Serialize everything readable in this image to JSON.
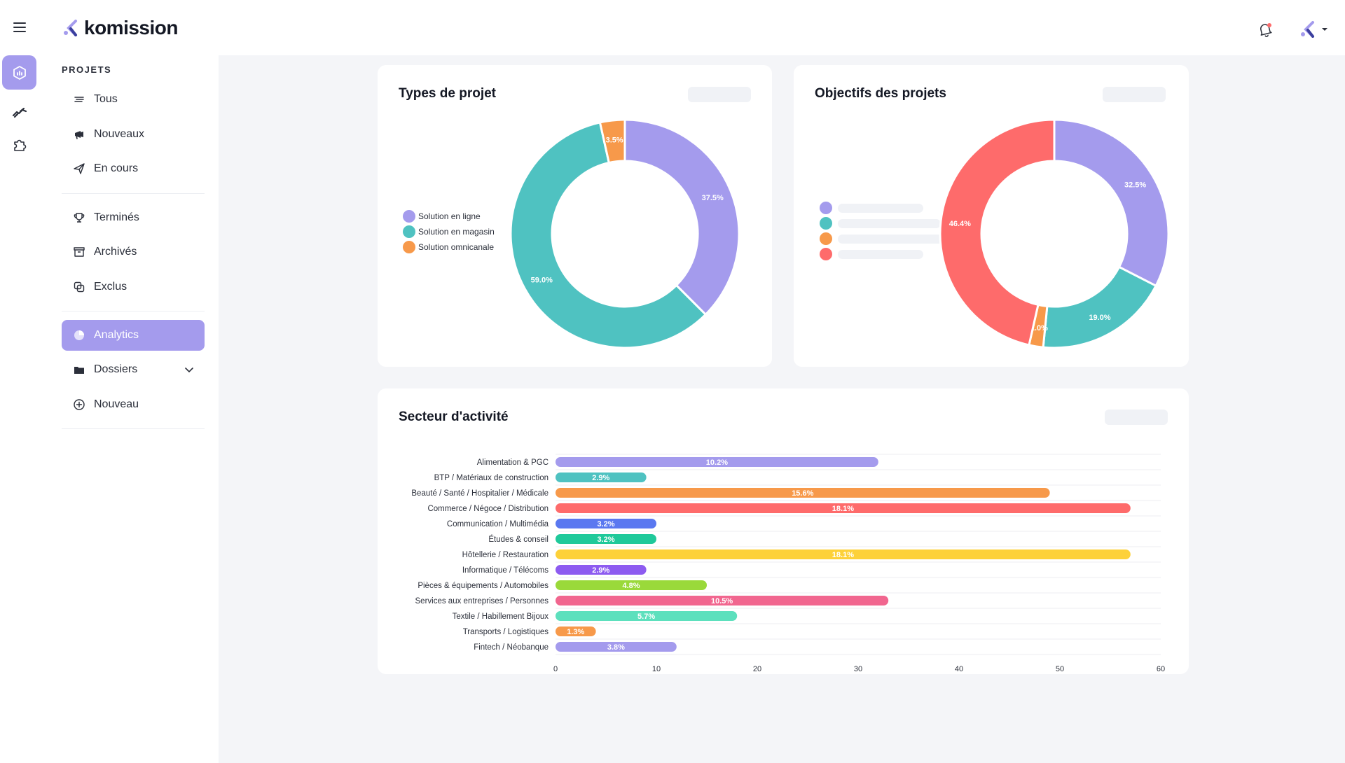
{
  "app": {
    "name": "komission"
  },
  "sidebar": {
    "section_title": "PROJETS",
    "items": [
      {
        "label": "Tous",
        "icon": "list-icon"
      },
      {
        "label": "Nouveaux",
        "icon": "megaphone-icon"
      },
      {
        "label": "En cours",
        "icon": "send-icon"
      },
      {
        "label": "Terminés",
        "icon": "trophy-icon"
      },
      {
        "label": "Archivés",
        "icon": "archive-icon"
      },
      {
        "label": "Exclus",
        "icon": "exclude-icon"
      },
      {
        "label": "Analytics",
        "icon": "pie-chart-icon",
        "active": true
      },
      {
        "label": "Dossiers",
        "icon": "folder-icon"
      },
      {
        "label": "Nouveau",
        "icon": "plus-circle-icon"
      }
    ]
  },
  "colors": {
    "accent": "#a49bed",
    "purple": "#a49bed",
    "teal": "#4fc2c1",
    "orange": "#f7994a",
    "red": "#fe6b6b"
  },
  "cards": {
    "types": {
      "title": "Types de projet"
    },
    "objectifs": {
      "title": "Objectifs des projets"
    },
    "secteur": {
      "title": "Secteur d'activité"
    }
  },
  "chart_data": [
    {
      "type": "pie",
      "title": "Types de projet",
      "labels": [
        "Solution en ligne",
        "Solution en magasin",
        "Solution omnicanale"
      ],
      "values": [
        37.5,
        59.0,
        3.5
      ],
      "value_labels": [
        "37.5%",
        "59.0%",
        "3.5%"
      ],
      "colors": [
        "#a49bed",
        "#4fc2c1",
        "#f7994a"
      ],
      "legend": "left"
    },
    {
      "type": "pie",
      "title": "Objectifs des projets",
      "labels": [
        "",
        "",
        "",
        ""
      ],
      "values": [
        32.5,
        19.0,
        2.0,
        46.4
      ],
      "value_labels": [
        "32.5%",
        "19.0%",
        "2.0%",
        "46.4%"
      ],
      "colors": [
        "#a49bed",
        "#4fc2c1",
        "#f7994a",
        "#fe6b6b"
      ],
      "legend": "left"
    },
    {
      "type": "bar",
      "orientation": "horizontal",
      "title": "Secteur d'activité",
      "categories": [
        "Alimentation & PGC",
        "BTP / Matériaux de construction",
        "Beauté / Santé / Hospitalier / Médicale",
        "Commerce / Négoce / Distribution",
        "Communication / Multimédia",
        "Études & conseil",
        "Hôtellerie / Restauration",
        "Informatique / Télécoms",
        "Pièces & équipements / Automobiles",
        "Services aux entreprises / Personnes",
        "Textile / Habillement Bijoux",
        "Transports / Logistiques",
        "Fintech / Néobanque"
      ],
      "values": [
        32,
        9,
        49,
        57,
        10,
        10,
        57,
        9,
        15,
        33,
        18,
        4,
        12
      ],
      "value_labels": [
        "10.2%",
        "2.9%",
        "15.6%",
        "18.1%",
        "3.2%",
        "3.2%",
        "18.1%",
        "2.9%",
        "4.8%",
        "10.5%",
        "5.7%",
        "1.3%",
        "3.8%"
      ],
      "colors": [
        "#a49bed",
        "#4fc2c1",
        "#f7994a",
        "#fe6b6b",
        "#5a78f0",
        "#1fc99a",
        "#fdd139",
        "#8d5bf0",
        "#9ad93a",
        "#f1668f",
        "#5de0bd",
        "#f7994a",
        "#a49bed"
      ],
      "xlim": [
        0,
        60
      ],
      "xticks": [
        0,
        10,
        20,
        30,
        40,
        50,
        60
      ],
      "xtick_labels": [
        "0",
        "10",
        "20",
        "30",
        "40",
        "50",
        "60"
      ]
    }
  ]
}
